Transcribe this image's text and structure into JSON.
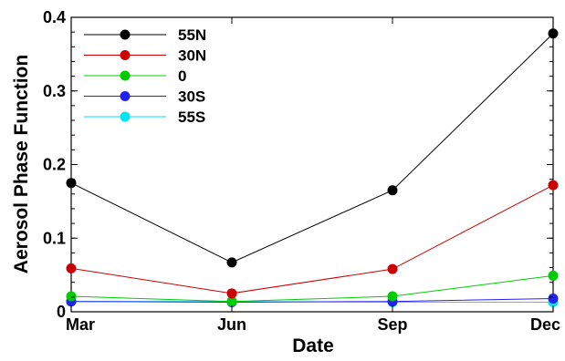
{
  "chart_data": {
    "type": "line",
    "title": "",
    "xlabel": "Date",
    "ylabel": "Aerosol Phase Function",
    "categories": [
      "Mar",
      "Jun",
      "Sep",
      "Dec"
    ],
    "ylim": [
      0,
      0.4
    ],
    "yticks": [
      "0",
      "0.1",
      "0.2",
      "0.3",
      "0.4"
    ],
    "grid": false,
    "legend_position": "top-left",
    "series": [
      {
        "name": "55N",
        "color": "#000000",
        "values": [
          0.175,
          0.067,
          0.165,
          0.378
        ]
      },
      {
        "name": "30N",
        "color": "#cc0000",
        "values": [
          0.059,
          0.025,
          0.058,
          0.172
        ]
      },
      {
        "name": "0",
        "color": "#00cc00",
        "values": [
          0.021,
          0.014,
          0.021,
          0.049
        ]
      },
      {
        "name": "30S",
        "color": "#2222ee",
        "values": [
          0.014,
          0.013,
          0.014,
          0.018
        ]
      },
      {
        "name": "55S",
        "color": "#00e5ee",
        "values": [
          0.014,
          0.014,
          0.013,
          0.013
        ]
      }
    ]
  }
}
